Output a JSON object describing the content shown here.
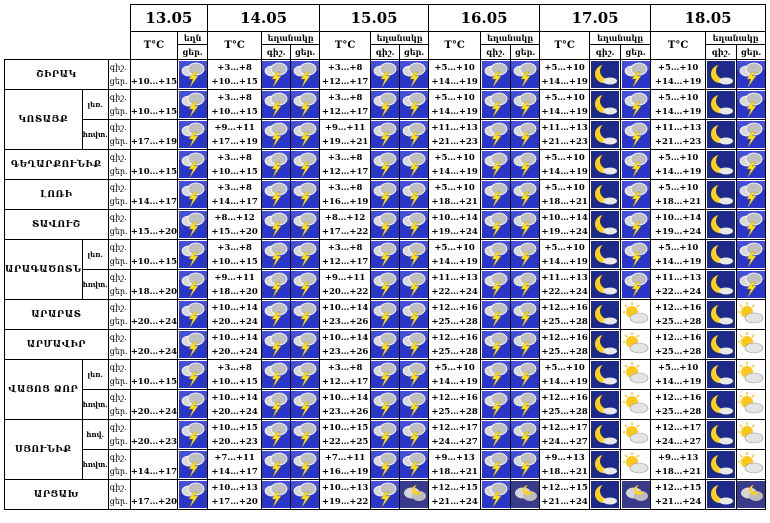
{
  "header": {
    "dates": [
      "13.05",
      "14.05",
      "15.05",
      "16.05",
      "17.05",
      "18.05"
    ],
    "temp_label": "T°C",
    "weather_label_short": "եղն",
    "weather_label": "եղանակը",
    "night_label": "գիշ.",
    "day_label": "ցեր."
  },
  "icon_legend": {
    "T": "thunderstorm-icon",
    "M": "moon-clear-night-icon",
    "m": "moon-cloud-night-icon",
    "S": "sun-cloud-icon",
    "colors": {
      "icon_sky": "#2a36c8",
      "icon_cloud": "#d6d6d6",
      "lightning": "#ffe21a",
      "sun": "#ffc81a"
    }
  },
  "rows": [
    {
      "region": "ՇԻՐԱԿ",
      "sub": "",
      "d13": {
        "n": "",
        "d": "+10…+15",
        "icon": "T"
      },
      "days": [
        {
          "n": "+3…+8",
          "d": "+10…+15",
          "i": [
            "T",
            "T"
          ]
        },
        {
          "n": "+3…+8",
          "d": "+12…+17",
          "i": [
            "T",
            "T"
          ]
        },
        {
          "n": "+5…+10",
          "d": "+14…+19",
          "i": [
            "T",
            "T"
          ]
        },
        {
          "n": "+5…+10",
          "d": "+14…+19",
          "i": [
            "M",
            "T"
          ]
        },
        {
          "n": "+5…+10",
          "d": "+14…+19",
          "i": [
            "M",
            "T"
          ]
        }
      ]
    },
    {
      "region": "ԿՈՏԱՅՔ",
      "sub": "լեռ.",
      "d13": {
        "n": "",
        "d": "+10…+15",
        "icon": "T"
      },
      "days": [
        {
          "n": "+3…+8",
          "d": "+10…+15",
          "i": [
            "T",
            "T"
          ]
        },
        {
          "n": "+3…+8",
          "d": "+12…+17",
          "i": [
            "T",
            "T"
          ]
        },
        {
          "n": "+5…+10",
          "d": "+14…+19",
          "i": [
            "T",
            "T"
          ]
        },
        {
          "n": "+5…+10",
          "d": "+14…+19",
          "i": [
            "M",
            "T"
          ]
        },
        {
          "n": "+5…+10",
          "d": "+14…+19",
          "i": [
            "M",
            "T"
          ]
        }
      ]
    },
    {
      "region": "",
      "sub": "հովտ.",
      "d13": {
        "n": "",
        "d": "+17…+19",
        "icon": "T"
      },
      "days": [
        {
          "n": "+9…+11",
          "d": "+17…+19",
          "i": [
            "T",
            "T"
          ]
        },
        {
          "n": "+9…+11",
          "d": "+19…+21",
          "i": [
            "T",
            "T"
          ]
        },
        {
          "n": "+11…+13",
          "d": "+21…+23",
          "i": [
            "T",
            "T"
          ]
        },
        {
          "n": "+11…+13",
          "d": "+21…+23",
          "i": [
            "M",
            "T"
          ]
        },
        {
          "n": "+11…+13",
          "d": "+21…+23",
          "i": [
            "M",
            "T"
          ]
        }
      ]
    },
    {
      "region": "ԳԵՂԱՐՔՈՒՆԻՔ",
      "sub": "",
      "d13": {
        "n": "",
        "d": "+10…+15",
        "icon": "T"
      },
      "days": [
        {
          "n": "+3…+8",
          "d": "+10…+15",
          "i": [
            "T",
            "T"
          ]
        },
        {
          "n": "+3…+8",
          "d": "+12…+17",
          "i": [
            "T",
            "T"
          ]
        },
        {
          "n": "+5…+10",
          "d": "+14…+19",
          "i": [
            "T",
            "T"
          ]
        },
        {
          "n": "+5…+10",
          "d": "+14…+19",
          "i": [
            "M",
            "T"
          ]
        },
        {
          "n": "+5…+10",
          "d": "+14…+19",
          "i": [
            "M",
            "T"
          ]
        }
      ]
    },
    {
      "region": "ԼՈՌԻ",
      "sub": "",
      "d13": {
        "n": "",
        "d": "+14…+17",
        "icon": "T"
      },
      "days": [
        {
          "n": "+3…+8",
          "d": "+14…+17",
          "i": [
            "T",
            "T"
          ]
        },
        {
          "n": "+3…+8",
          "d": "+16…+19",
          "i": [
            "T",
            "T"
          ]
        },
        {
          "n": "+5…+10",
          "d": "+18…+21",
          "i": [
            "T",
            "T"
          ]
        },
        {
          "n": "+5…+10",
          "d": "+18…+21",
          "i": [
            "M",
            "T"
          ]
        },
        {
          "n": "+5…+10",
          "d": "+18…+21",
          "i": [
            "M",
            "T"
          ]
        }
      ]
    },
    {
      "region": "ՏԱՎՈՒՇ",
      "sub": "",
      "d13": {
        "n": "",
        "d": "+15…+20",
        "icon": "T"
      },
      "days": [
        {
          "n": "+8…+12",
          "d": "+15…+20",
          "i": [
            "T",
            "T"
          ]
        },
        {
          "n": "+8…+12",
          "d": "+17…+22",
          "i": [
            "T",
            "T"
          ]
        },
        {
          "n": "+10…+14",
          "d": "+19…+24",
          "i": [
            "T",
            "T"
          ]
        },
        {
          "n": "+10…+14",
          "d": "+19…+24",
          "i": [
            "M",
            "T"
          ]
        },
        {
          "n": "+10…+14",
          "d": "+19…+24",
          "i": [
            "M",
            "T"
          ]
        }
      ]
    },
    {
      "region": "ԱՐԱԳԱԾՈՏՆ",
      "sub": "լեռ.",
      "d13": {
        "n": "",
        "d": "+10…+15",
        "icon": "T"
      },
      "days": [
        {
          "n": "+3…+8",
          "d": "+10…+15",
          "i": [
            "T",
            "T"
          ]
        },
        {
          "n": "+3…+8",
          "d": "+12…+17",
          "i": [
            "T",
            "T"
          ]
        },
        {
          "n": "+5…+10",
          "d": "+14…+19",
          "i": [
            "T",
            "T"
          ]
        },
        {
          "n": "+5…+10",
          "d": "+14…+19",
          "i": [
            "M",
            "T"
          ]
        },
        {
          "n": "+5…+10",
          "d": "+14…+19",
          "i": [
            "M",
            "T"
          ]
        }
      ]
    },
    {
      "region": "",
      "sub": "հովտ.",
      "d13": {
        "n": "",
        "d": "+18…+20",
        "icon": "T"
      },
      "days": [
        {
          "n": "+9…+11",
          "d": "+18…+20",
          "i": [
            "T",
            "T"
          ]
        },
        {
          "n": "+9…+11",
          "d": "+20…+22",
          "i": [
            "T",
            "T"
          ]
        },
        {
          "n": "+11…+13",
          "d": "+22…+24",
          "i": [
            "T",
            "T"
          ]
        },
        {
          "n": "+11…+13",
          "d": "+22…+24",
          "i": [
            "M",
            "T"
          ]
        },
        {
          "n": "+11…+13",
          "d": "+22…+24",
          "i": [
            "M",
            "T"
          ]
        }
      ]
    },
    {
      "region": "ԱՐԱՐԱՏ",
      "sub": "",
      "d13": {
        "n": "",
        "d": "+20…+24",
        "icon": "T"
      },
      "days": [
        {
          "n": "+10…+14",
          "d": "+20…+24",
          "i": [
            "T",
            "T"
          ]
        },
        {
          "n": "+10…+14",
          "d": "+23…+26",
          "i": [
            "T",
            "T"
          ]
        },
        {
          "n": "+12…+16",
          "d": "+25…+28",
          "i": [
            "T",
            "T"
          ]
        },
        {
          "n": "+12…+16",
          "d": "+25…+28",
          "i": [
            "M",
            "S"
          ]
        },
        {
          "n": "+12…+16",
          "d": "+25…+28",
          "i": [
            "M",
            "S"
          ]
        }
      ]
    },
    {
      "region": "ԱՐՄԱՎԻՐ",
      "sub": "",
      "d13": {
        "n": "",
        "d": "+20…+24",
        "icon": "T"
      },
      "days": [
        {
          "n": "+10…+14",
          "d": "+20…+24",
          "i": [
            "T",
            "T"
          ]
        },
        {
          "n": "+10…+14",
          "d": "+23…+26",
          "i": [
            "T",
            "T"
          ]
        },
        {
          "n": "+12…+16",
          "d": "+25…+28",
          "i": [
            "T",
            "T"
          ]
        },
        {
          "n": "+12…+16",
          "d": "+25…+28",
          "i": [
            "M",
            "S"
          ]
        },
        {
          "n": "+12…+16",
          "d": "+25…+28",
          "i": [
            "M",
            "S"
          ]
        }
      ]
    },
    {
      "region": "ՎԱՅՈՑ ՁՈՐ",
      "sub": "լեռ.",
      "d13": {
        "n": "",
        "d": "+10…+15",
        "icon": "T"
      },
      "days": [
        {
          "n": "+3…+8",
          "d": "+10…+15",
          "i": [
            "T",
            "T"
          ]
        },
        {
          "n": "+3…+8",
          "d": "+12…+17",
          "i": [
            "T",
            "T"
          ]
        },
        {
          "n": "+5…+10",
          "d": "+14…+19",
          "i": [
            "T",
            "T"
          ]
        },
        {
          "n": "+5…+10",
          "d": "+14…+19",
          "i": [
            "M",
            "S"
          ]
        },
        {
          "n": "+5…+10",
          "d": "+14…+19",
          "i": [
            "M",
            "S"
          ]
        }
      ]
    },
    {
      "region": "",
      "sub": "հովտ.",
      "d13": {
        "n": "",
        "d": "+20…+24",
        "icon": "T"
      },
      "days": [
        {
          "n": "+10…+14",
          "d": "+20…+24",
          "i": [
            "T",
            "T"
          ]
        },
        {
          "n": "+10…+14",
          "d": "+23…+26",
          "i": [
            "T",
            "T"
          ]
        },
        {
          "n": "+12…+16",
          "d": "+25…+28",
          "i": [
            "T",
            "T"
          ]
        },
        {
          "n": "+12…+16",
          "d": "+25…+28",
          "i": [
            "M",
            "S"
          ]
        },
        {
          "n": "+12…+16",
          "d": "+25…+28",
          "i": [
            "M",
            "S"
          ]
        }
      ]
    },
    {
      "region": "ՍՅՈՒՆԻՔ",
      "sub": "հով.",
      "d13": {
        "n": "",
        "d": "+20…+23",
        "icon": "T"
      },
      "days": [
        {
          "n": "+10…+15",
          "d": "+20…+23",
          "i": [
            "T",
            "T"
          ]
        },
        {
          "n": "+10…+15",
          "d": "+22…+25",
          "i": [
            "T",
            "T"
          ]
        },
        {
          "n": "+12…+17",
          "d": "+24…+27",
          "i": [
            "T",
            "T"
          ]
        },
        {
          "n": "+12…+17",
          "d": "+24…+27",
          "i": [
            "M",
            "S"
          ]
        },
        {
          "n": "+12…+17",
          "d": "+24…+27",
          "i": [
            "M",
            "S"
          ]
        }
      ]
    },
    {
      "region": "",
      "sub": "հովտ.",
      "d13": {
        "n": "",
        "d": "+14…+17",
        "icon": "T"
      },
      "days": [
        {
          "n": "+7…+11",
          "d": "+14…+17",
          "i": [
            "T",
            "T"
          ]
        },
        {
          "n": "+7…+11",
          "d": "+16…+19",
          "i": [
            "T",
            "T"
          ]
        },
        {
          "n": "+9…+13",
          "d": "+18…+21",
          "i": [
            "T",
            "T"
          ]
        },
        {
          "n": "+9…+13",
          "d": "+18…+21",
          "i": [
            "M",
            "S"
          ]
        },
        {
          "n": "+9…+13",
          "d": "+18…+21",
          "i": [
            "M",
            "S"
          ]
        }
      ]
    },
    {
      "region": "ԱՐՑԱԽ",
      "sub": "",
      "d13": {
        "n": "",
        "d": "+17…+20",
        "icon": "T"
      },
      "days": [
        {
          "n": "+10…+13",
          "d": "+17…+20",
          "i": [
            "T",
            "T"
          ]
        },
        {
          "n": "+10…+13",
          "d": "+19…+22",
          "i": [
            "T",
            "m"
          ]
        },
        {
          "n": "+12…+15",
          "d": "+21…+24",
          "i": [
            "T",
            "m"
          ]
        },
        {
          "n": "+12…+15",
          "d": "+21…+24",
          "i": [
            "M",
            "m"
          ]
        },
        {
          "n": "+12…+15",
          "d": "+21…+24",
          "i": [
            "M",
            "m"
          ]
        }
      ]
    }
  ]
}
